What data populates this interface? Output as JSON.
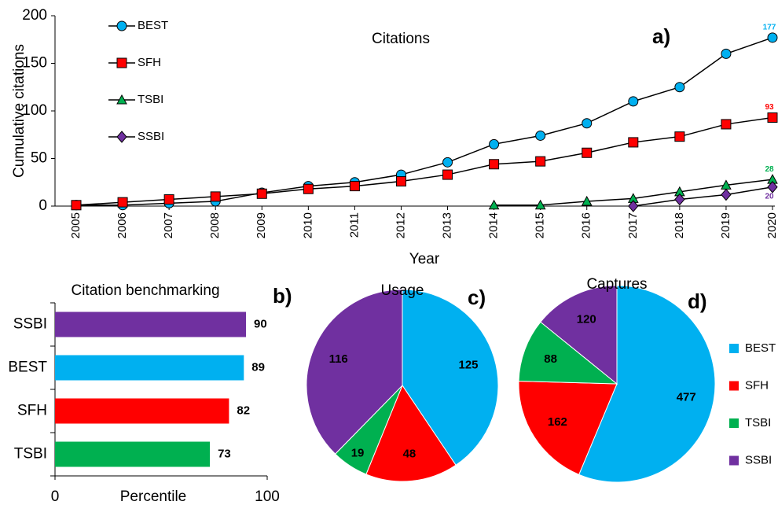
{
  "chart_data": [
    {
      "type": "line",
      "title": "Citations",
      "annotation": "a)",
      "xlabel": "Year",
      "ylabel": "Cumulative citations",
      "categories": [
        "2005",
        "2006",
        "2007",
        "2008",
        "2009",
        "2010",
        "2011",
        "2012",
        "2013",
        "2014",
        "2015",
        "2016",
        "2017",
        "2018",
        "2019",
        "2020"
      ],
      "series": [
        {
          "name": "BEST",
          "color": "#00b0f0",
          "marker": "circle",
          "values": [
            1,
            1,
            3,
            5,
            14,
            21,
            25,
            33,
            46,
            65,
            74,
            87,
            110,
            125,
            160,
            177
          ]
        },
        {
          "name": "SFH",
          "color": "#ff0000",
          "marker": "square",
          "values": [
            1,
            4,
            7,
            10,
            13,
            18,
            21,
            26,
            33,
            44,
            47,
            56,
            67,
            73,
            86,
            93
          ]
        },
        {
          "name": "TSBI",
          "color": "#00b050",
          "marker": "triangle",
          "values": [
            null,
            null,
            null,
            null,
            null,
            null,
            null,
            null,
            null,
            1,
            1,
            5,
            8,
            15,
            22,
            28
          ]
        },
        {
          "name": "SSBI",
          "color": "#7030a0",
          "marker": "diamond",
          "values": [
            null,
            null,
            null,
            null,
            null,
            null,
            null,
            null,
            null,
            null,
            null,
            null,
            0,
            7,
            12,
            20
          ]
        }
      ],
      "ylim": [
        0,
        200
      ],
      "yticks": [
        0,
        50,
        100,
        150,
        200
      ]
    },
    {
      "type": "barh",
      "title": "Citation benchmarking",
      "annotation": "b)",
      "xlabel": "Percentile",
      "categories": [
        "SSBI",
        "BEST",
        "SFH",
        "TSBI"
      ],
      "values": [
        90,
        89,
        82,
        73
      ],
      "colors": [
        "#7030a0",
        "#00b0f0",
        "#ff0000",
        "#00b050"
      ],
      "xlim": [
        0,
        100
      ],
      "xticks": [
        0,
        100
      ]
    },
    {
      "type": "pie",
      "title": "Usage",
      "annotation": "c)",
      "categories": [
        "BEST",
        "SFH",
        "TSBI",
        "SSBI"
      ],
      "values": [
        125,
        48,
        19,
        116
      ],
      "colors": [
        "#00b0f0",
        "#ff0000",
        "#00b050",
        "#7030a0"
      ]
    },
    {
      "type": "pie",
      "title": "Captures",
      "annotation": "d)",
      "categories": [
        "BEST",
        "SFH",
        "TSBI",
        "SSBI"
      ],
      "values": [
        477,
        162,
        88,
        120
      ],
      "colors": [
        "#00b0f0",
        "#ff0000",
        "#00b050",
        "#7030a0"
      ],
      "legend": true
    }
  ]
}
